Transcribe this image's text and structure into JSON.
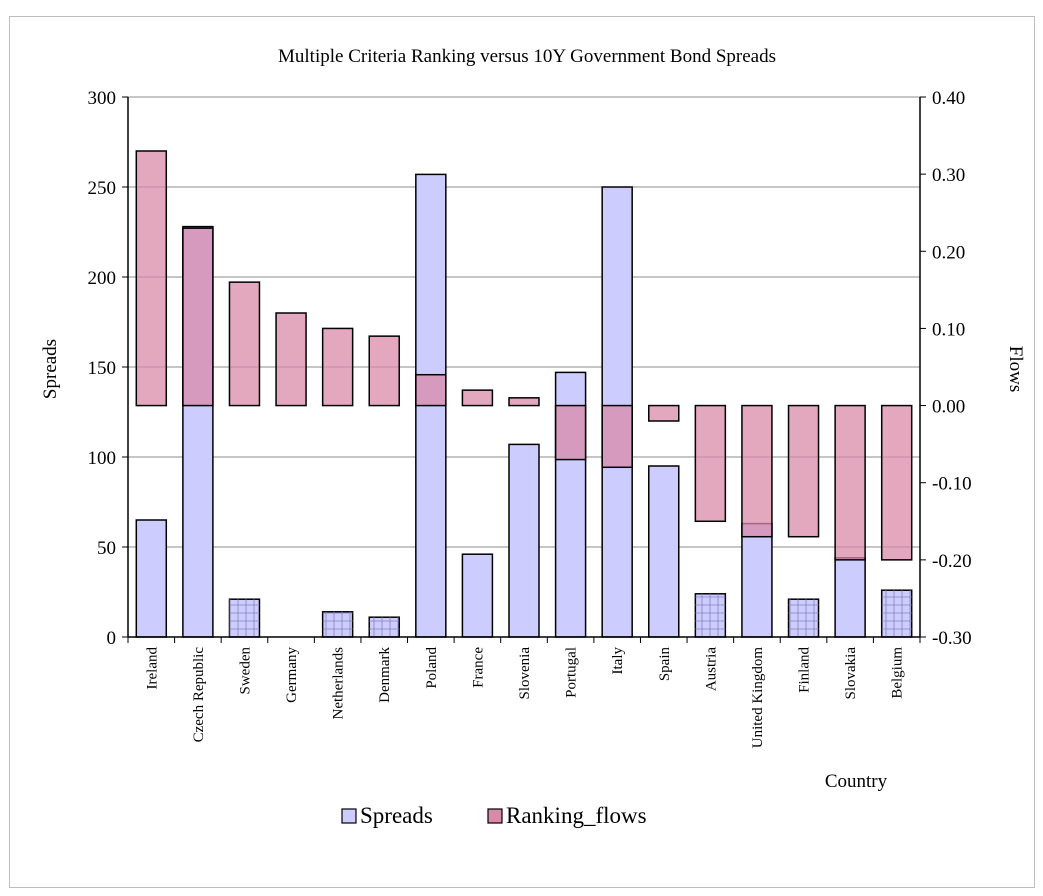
{
  "chart_data": {
    "type": "bar",
    "title": "Multiple Criteria Ranking versus 10Y Government Bond Spreads",
    "xlabel": "Country",
    "ylabel": "Spreads",
    "y2label": "Flows",
    "ylim": [
      0,
      300
    ],
    "y2lim": [
      -0.3,
      0.4
    ],
    "yticks": [
      "0",
      "50",
      "100",
      "150",
      "200",
      "250",
      "300"
    ],
    "y2ticks": [
      "-0.30",
      "-0.20",
      "-0.10",
      "0.00",
      "0.10",
      "0.20",
      "0.30",
      "0.40"
    ],
    "grid": true,
    "legend_position": "bottom",
    "categories": [
      "Ireland",
      "Czech Republic",
      "Sweden",
      "Germany",
      "Netherlands",
      "Denmark",
      "Poland",
      "France",
      "Slovenia",
      "Portugal",
      "Italy",
      "Spain",
      "Austria",
      "United Kingdom",
      "Finland",
      "Slovakia",
      "Belgium"
    ],
    "series": [
      {
        "name": "Spreads",
        "axis": "left",
        "color": "#ccccff",
        "values": [
          65,
          228,
          21,
          0,
          14,
          11,
          257,
          46,
          107,
          147,
          250,
          95,
          24,
          63,
          21,
          44,
          26
        ]
      },
      {
        "name": "Ranking_flows",
        "axis": "right",
        "color": "#d98aa8",
        "values": [
          0.33,
          0.23,
          0.16,
          0.12,
          0.1,
          0.09,
          0.04,
          0.02,
          0.01,
          -0.07,
          -0.08,
          -0.02,
          -0.15,
          -0.17,
          -0.17,
          -0.2,
          -0.2
        ]
      }
    ]
  }
}
